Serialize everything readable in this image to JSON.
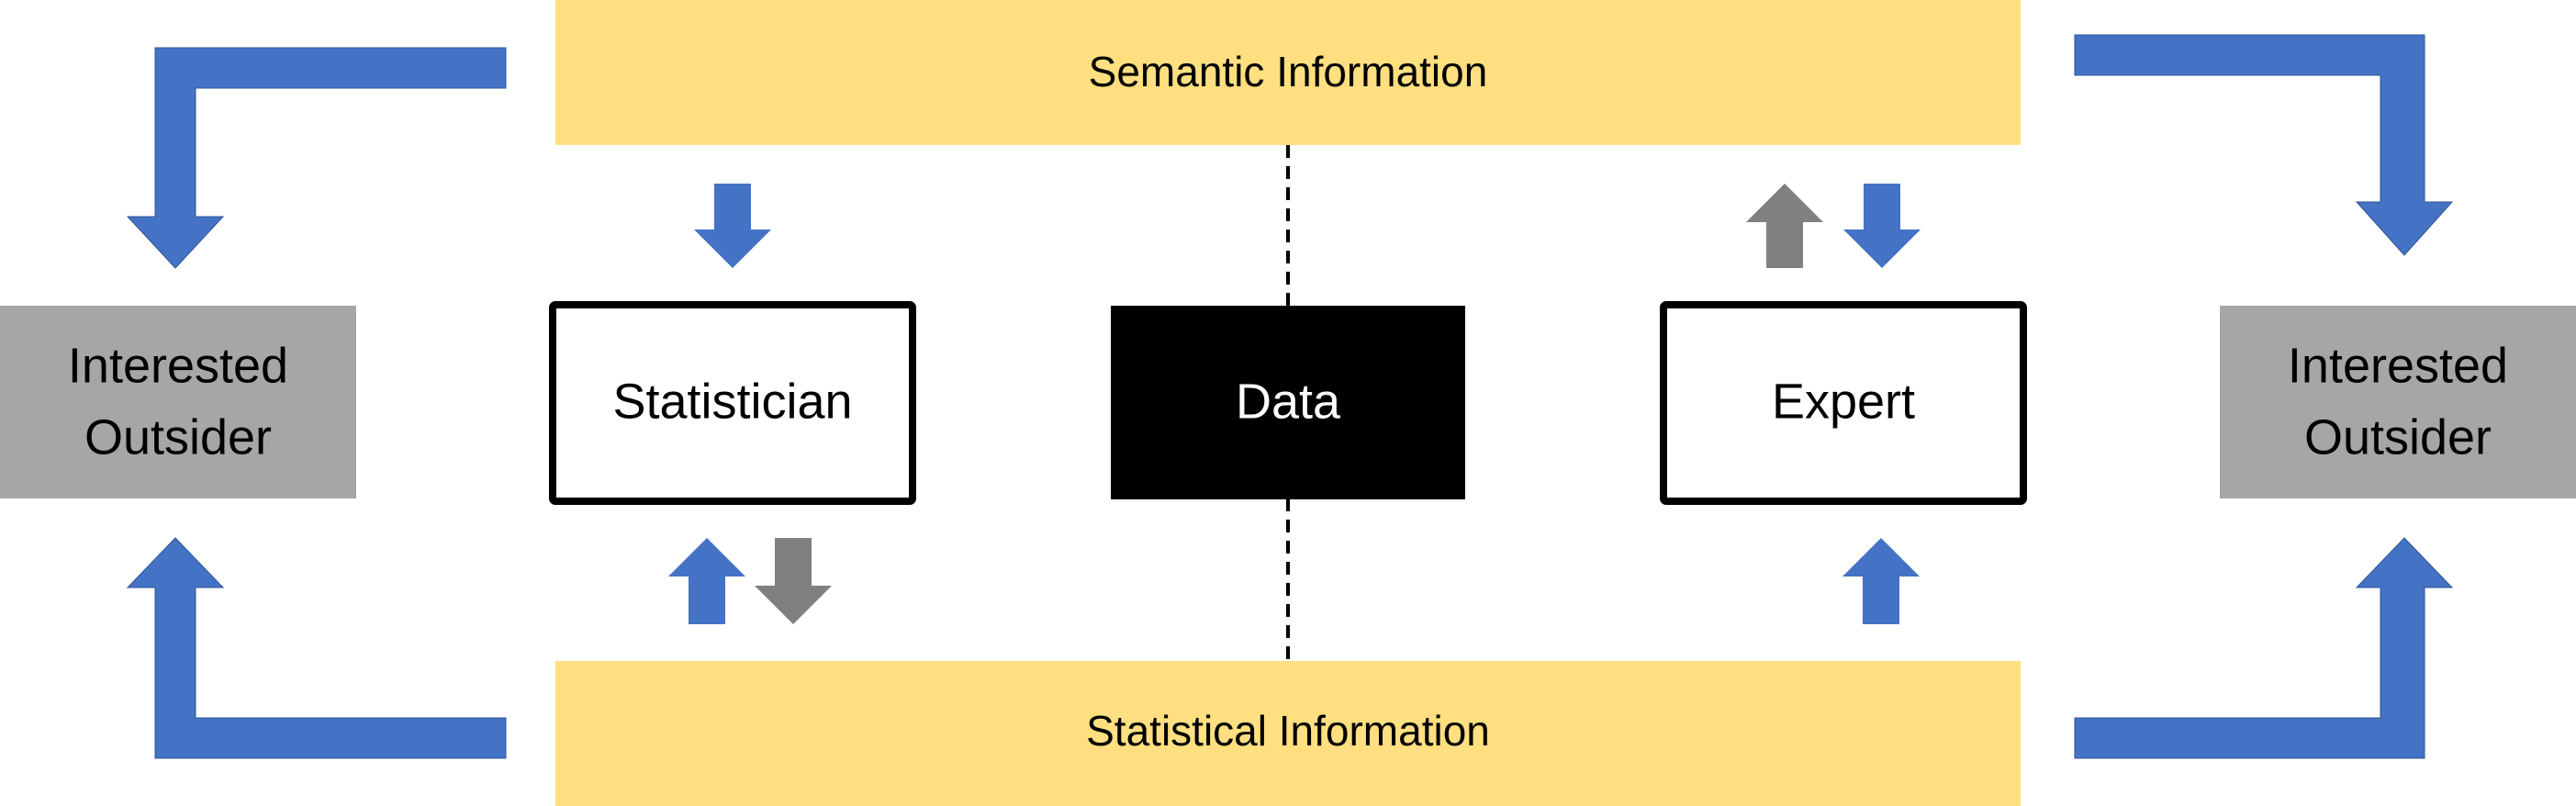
{
  "semantic_label": "Semantic Information",
  "statistical_label": "Statistical Information",
  "statistician_label": "Statistician",
  "data_label": "Data",
  "expert_label": "Expert",
  "left_outsider": [
    "Interested",
    "Outsider"
  ],
  "right_outsider": [
    "Interested",
    "Outsider"
  ],
  "colors": {
    "yellow_band": "#FFDF80",
    "blue_arrow": "#4472C4",
    "gray_arrow": "#808080",
    "outsider_box": "#A6A6A6",
    "data_box": "#000000"
  }
}
